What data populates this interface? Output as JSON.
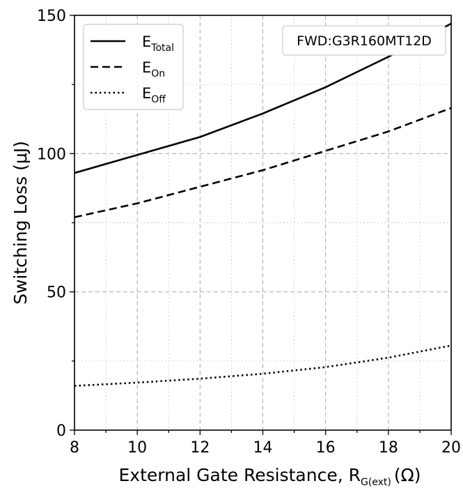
{
  "chart_data": {
    "type": "line",
    "title": "",
    "xlabel": "External Gate Resistance, R",
    "xlabel_sub": "G(ext)",
    "xlabel_unit": "(Ω)",
    "ylabel": "Switching Loss (μJ)",
    "xlim": [
      8,
      20
    ],
    "ylim": [
      0,
      150
    ],
    "x_ticks": [
      8,
      10,
      12,
      14,
      16,
      18,
      20
    ],
    "y_ticks": [
      0,
      50,
      100,
      150
    ],
    "grid": true,
    "legend_position": "top-left",
    "annotation": "FWD:G3R160MT12D",
    "x": [
      8,
      10,
      12,
      14,
      16,
      18,
      20
    ],
    "series": [
      {
        "name": "E",
        "sub": "Total",
        "style": "solid",
        "values": [
          93,
          99.5,
          106,
          114.5,
          124,
          135,
          147
        ]
      },
      {
        "name": "E",
        "sub": "On",
        "style": "dashed",
        "values": [
          77,
          82,
          88,
          94,
          101,
          108,
          116.5
        ]
      },
      {
        "name": "E",
        "sub": "Off",
        "style": "dotted",
        "values": [
          16,
          17.2,
          18.6,
          20.4,
          22.8,
          26.2,
          30.6
        ]
      }
    ]
  }
}
